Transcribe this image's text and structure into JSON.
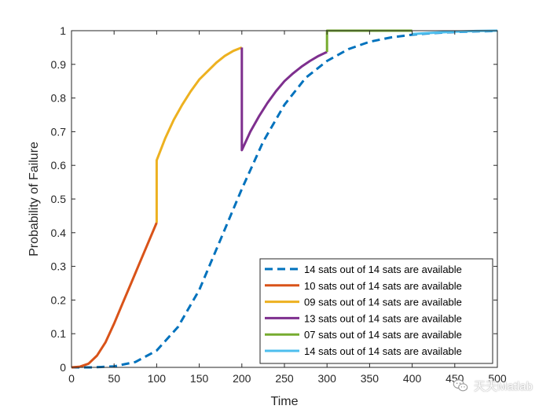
{
  "chart_data": {
    "type": "line",
    "title": "",
    "xlabel": "Time",
    "ylabel": "Probability of Failure",
    "xlim": [
      0,
      500
    ],
    "ylim": [
      0,
      1
    ],
    "xticks": [
      "0",
      "50",
      "100",
      "150",
      "200",
      "250",
      "300",
      "350",
      "400",
      "450",
      "500"
    ],
    "yticks": [
      "0",
      "0.1",
      "0.2",
      "0.3",
      "0.4",
      "0.5",
      "0.6",
      "0.7",
      "0.8",
      "0.9",
      "1"
    ],
    "grid": false,
    "legend_position": "bottom-right",
    "series": [
      {
        "name": "14 sats out of 14 sats are available",
        "color": "#0072BD",
        "dash": "dashed",
        "x": [
          0,
          25,
          50,
          75,
          100,
          125,
          150,
          175,
          200,
          225,
          250,
          275,
          300,
          325,
          350,
          375,
          400,
          425,
          450,
          475,
          500
        ],
        "y": [
          0.0,
          0.0,
          0.003,
          0.016,
          0.05,
          0.12,
          0.23,
          0.38,
          0.53,
          0.67,
          0.78,
          0.86,
          0.91,
          0.945,
          0.967,
          0.98,
          0.988,
          0.993,
          0.996,
          0.998,
          0.999
        ]
      },
      {
        "name": "10 sats out of 14 sats are available",
        "color": "#D95319",
        "dash": "solid",
        "x": [
          0,
          10,
          20,
          30,
          40,
          50,
          60,
          70,
          80,
          90,
          100
        ],
        "y": [
          0.0,
          0.002,
          0.011,
          0.035,
          0.075,
          0.13,
          0.19,
          0.25,
          0.31,
          0.37,
          0.43
        ]
      },
      {
        "name": "09 sats out of 14 sats are available",
        "color": "#EDB120",
        "dash": "solid",
        "x": [
          100,
          100,
          110,
          120,
          130,
          140,
          150,
          160,
          170,
          180,
          190,
          200
        ],
        "y": [
          0.43,
          0.615,
          0.68,
          0.735,
          0.78,
          0.82,
          0.855,
          0.88,
          0.905,
          0.925,
          0.94,
          0.95
        ]
      },
      {
        "name": "13 sats out of 14 sats are available",
        "color": "#7E2F8E",
        "dash": "solid",
        "x": [
          200,
          200,
          210,
          220,
          230,
          240,
          250,
          260,
          270,
          280,
          290,
          300
        ],
        "y": [
          0.95,
          0.645,
          0.7,
          0.745,
          0.785,
          0.82,
          0.85,
          0.873,
          0.893,
          0.91,
          0.925,
          0.937
        ]
      },
      {
        "name": "07 sats out of 14 sats are available",
        "color": "#77AC30",
        "dash": "solid",
        "x": [
          300,
          300,
          350,
          400
        ],
        "y": [
          0.937,
          1.0,
          1.0,
          1.0
        ]
      },
      {
        "name": "14 sats out of 14 sats are available",
        "color": "#4DBEEE",
        "dash": "solid",
        "x": [
          400,
          425,
          450,
          475,
          500
        ],
        "y": [
          0.99,
          0.994,
          0.997,
          0.999,
          1.0
        ]
      }
    ]
  },
  "watermark": {
    "text": "天天Matlab",
    "icon": "wechat-icon"
  }
}
